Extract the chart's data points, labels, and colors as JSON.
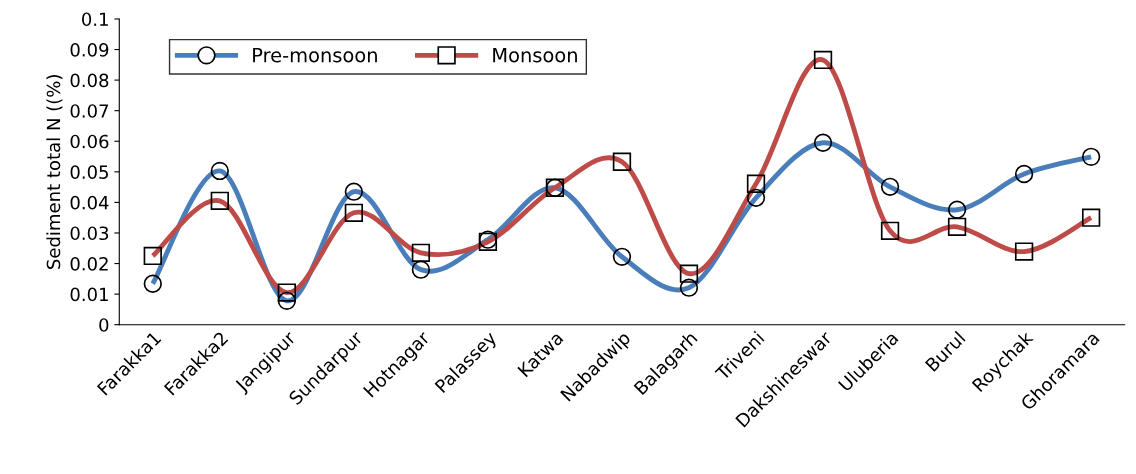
{
  "chart_data": {
    "type": "line",
    "ylabel": "Sediment total N ((%)",
    "categories": [
      "Farakka1",
      "Farakka2",
      "Jangipur",
      "Sundarpur",
      "Hotnagar",
      "Palassey",
      "Katwa",
      "Nabadwip",
      "Balagarh",
      "Triveni",
      "Dakshineswar",
      "Uluberia",
      "Burul",
      "Roychak",
      "Ghoramara"
    ],
    "series": [
      {
        "name": "Pre-monsoon",
        "color": "#4a7ebb",
        "marker": "circle",
        "values": [
          0.0134,
          0.0503,
          0.0078,
          0.0435,
          0.018,
          0.0278,
          0.0448,
          0.0222,
          0.0121,
          0.0415,
          0.0595,
          0.0451,
          0.0376,
          0.0493,
          0.0549
        ]
      },
      {
        "name": "Monsoon",
        "color": "#be4b48",
        "marker": "square",
        "values": [
          0.0225,
          0.0405,
          0.0105,
          0.0366,
          0.0235,
          0.0271,
          0.0448,
          0.0533,
          0.0167,
          0.0461,
          0.0866,
          0.0307,
          0.032,
          0.0239,
          0.035
        ]
      }
    ],
    "ylim": [
      0,
      0.1
    ],
    "yticks": [
      {
        "value": 0,
        "label": "0"
      },
      0.01,
      0.02,
      0.03,
      0.04,
      0.05,
      0.06,
      0.07,
      0.08,
      0.09,
      0.1
    ],
    "grid": false,
    "legend": "top left",
    "line_style": "solid"
  }
}
